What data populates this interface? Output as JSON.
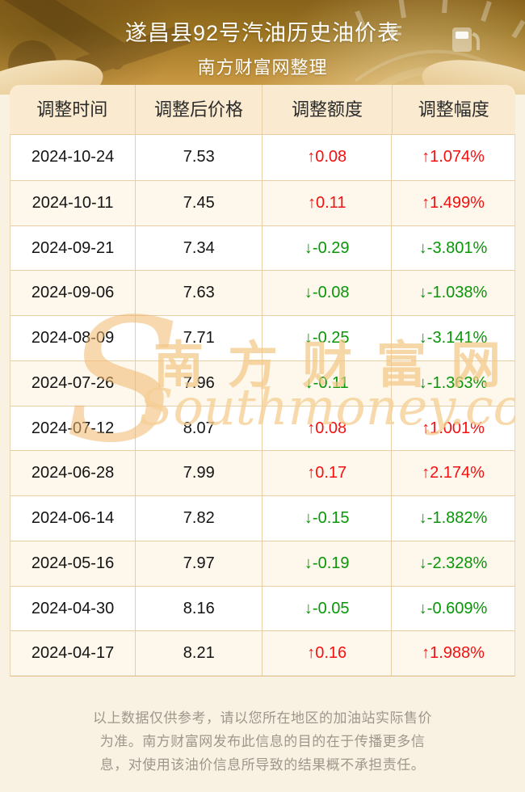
{
  "header": {
    "title": "遂昌县92号汽油历史油价表",
    "subtitle": "南方财富网整理"
  },
  "table": {
    "columns": [
      "调整时间",
      "调整后价格",
      "调整额度",
      "调整幅度"
    ],
    "rows": [
      {
        "date": "2024-10-24",
        "price": "7.53",
        "change": "↑0.08",
        "percent": "↑1.074%",
        "trend": "up"
      },
      {
        "date": "2024-10-11",
        "price": "7.45",
        "change": "↑0.11",
        "percent": "↑1.499%",
        "trend": "up"
      },
      {
        "date": "2024-09-21",
        "price": "7.34",
        "change": "↓-0.29",
        "percent": "↓-3.801%",
        "trend": "down"
      },
      {
        "date": "2024-09-06",
        "price": "7.63",
        "change": "↓-0.08",
        "percent": "↓-1.038%",
        "trend": "down"
      },
      {
        "date": "2024-08-09",
        "price": "7.71",
        "change": "↓-0.25",
        "percent": "↓-3.141%",
        "trend": "down"
      },
      {
        "date": "2024-07-26",
        "price": "7.96",
        "change": "↓-0.11",
        "percent": "↓-1.363%",
        "trend": "down"
      },
      {
        "date": "2024-07-12",
        "price": "8.07",
        "change": "↑0.08",
        "percent": "↑1.001%",
        "trend": "up"
      },
      {
        "date": "2024-06-28",
        "price": "7.99",
        "change": "↑0.17",
        "percent": "↑2.174%",
        "trend": "up"
      },
      {
        "date": "2024-06-14",
        "price": "7.82",
        "change": "↓-0.15",
        "percent": "↓-1.882%",
        "trend": "down"
      },
      {
        "date": "2024-05-16",
        "price": "7.97",
        "change": "↓-0.19",
        "percent": "↓-2.328%",
        "trend": "down"
      },
      {
        "date": "2024-04-30",
        "price": "8.16",
        "change": "↓-0.05",
        "percent": "↓-0.609%",
        "trend": "down"
      },
      {
        "date": "2024-04-17",
        "price": "8.21",
        "change": "↑0.16",
        "percent": "↑1.988%",
        "trend": "up"
      }
    ]
  },
  "watermark": {
    "logo_s": "S",
    "cn": "南方财富网",
    "en": "Southmoney.com"
  },
  "footer": {
    "lines": [
      "以上数据仅供参考，请以您所在地区的加油站实际售价",
      "为准。南方财富网发布此信息的目的在于传播更多信",
      "息，对使用该油价信息所导致的结果概不承担责任。"
    ]
  },
  "colors": {
    "up": "#f31111",
    "down": "#0a9608"
  }
}
